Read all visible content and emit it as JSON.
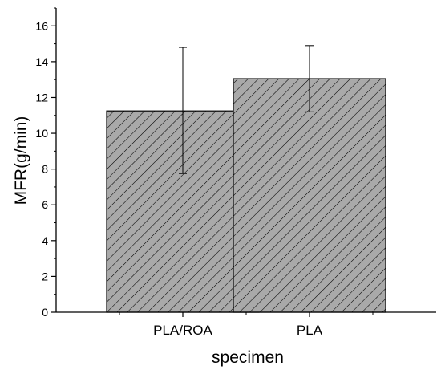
{
  "chart_data": {
    "type": "bar",
    "categories": [
      "PLA/ROA",
      "PLA"
    ],
    "values": [
      11.25,
      13.05
    ],
    "error_high": [
      14.8,
      14.9
    ],
    "error_low": [
      7.75,
      11.2
    ],
    "xlabel": "specimen",
    "ylabel": "MFR(g/min)",
    "ylim": [
      0,
      17
    ],
    "yticks": [
      "0",
      "2",
      "4",
      "6",
      "8",
      "10",
      "12",
      "14",
      "16"
    ],
    "grid": false,
    "legend": "none",
    "bar_fill": "#a9a9a9",
    "bar_hatch": "diagonal",
    "bar_stroke": "#000000"
  }
}
